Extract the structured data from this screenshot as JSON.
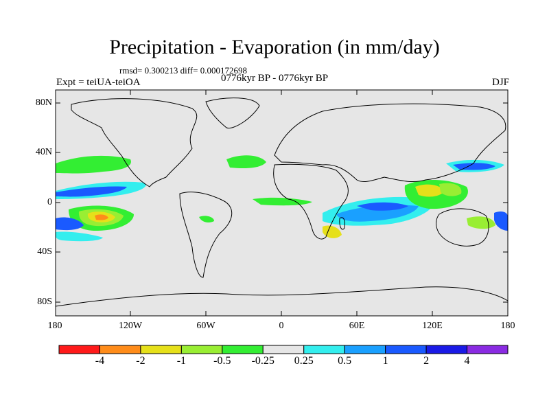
{
  "title": "Precipitation - Evaporation (in mm/day)",
  "stats": "rmsd= 0.300213 diff= 0.000172698",
  "experiment": "Expt = teiUA-teiOA",
  "period": "0776kyr BP - 0776kyr BP",
  "season": "DJF",
  "lat_ticks": [
    "80N",
    "40N",
    "0",
    "40S",
    "80S"
  ],
  "lon_ticks": [
    "180",
    "120W",
    "60W",
    "0",
    "60E",
    "120E",
    "180"
  ],
  "colorbar": {
    "labels": [
      "-4",
      "-2",
      "-1",
      "-0.5",
      "-0.25",
      "0.25",
      "0.5",
      "1",
      "2",
      "4"
    ],
    "colors": [
      "#ff1a1a",
      "#ff8c1a",
      "#e6e01a",
      "#99ee33",
      "#33ee33",
      "#e6e6e6",
      "#33eeee",
      "#1aa0ff",
      "#1a5aff",
      "#1a1ae6",
      "#8a2be2"
    ]
  },
  "colors": {
    "land_ocean_bg": "#e6e6e6",
    "coast": "#000000"
  }
}
